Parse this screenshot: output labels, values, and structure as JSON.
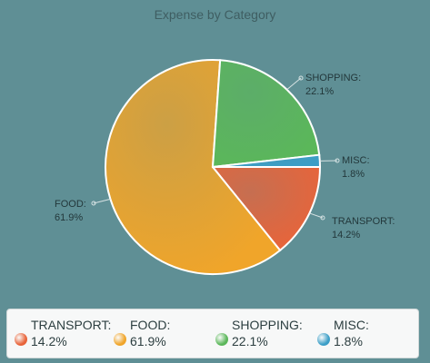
{
  "chart_data": {
    "type": "pie",
    "title": "Expense by Category",
    "slices": [
      {
        "label": "TRANSPORT",
        "value": 14.2,
        "display": "14.2%",
        "color": "#e8643a"
      },
      {
        "label": "FOOD",
        "value": 61.9,
        "display": "61.9%",
        "color": "#f0a52a"
      },
      {
        "label": "SHOPPING",
        "value": 22.1,
        "display": "22.1%",
        "color": "#5bb75a"
      },
      {
        "label": "MISC",
        "value": 1.8,
        "display": "1.8%",
        "color": "#3b9ec7"
      }
    ],
    "legend_position": "bottom"
  }
}
